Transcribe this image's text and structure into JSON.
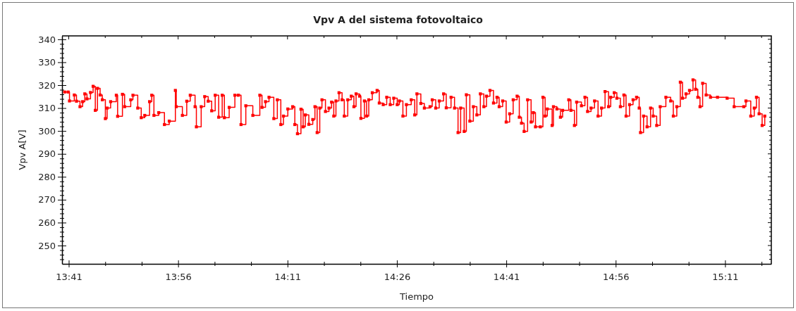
{
  "chart_data": {
    "type": "step",
    "title": "Vpv A del sistema fotovoltaico",
    "xlabel": "Tiempo",
    "ylabel": "Vpv A[V]",
    "marker": "square",
    "line_style": "solid",
    "grid": false,
    "xlim": [
      13.668,
      15.289
    ],
    "ylim": [
      242,
      341.5
    ],
    "xticks": [
      {
        "value": 13.6833,
        "label": "13:41"
      },
      {
        "value": 13.7667,
        "label": null
      },
      {
        "value": 13.85,
        "label": null
      },
      {
        "value": 13.9333,
        "label": "13:56"
      },
      {
        "value": 14.0167,
        "label": null
      },
      {
        "value": 14.1,
        "label": null
      },
      {
        "value": 14.1833,
        "label": "14:11"
      },
      {
        "value": 14.2667,
        "label": null
      },
      {
        "value": 14.35,
        "label": null
      },
      {
        "value": 14.4333,
        "label": "14:26"
      },
      {
        "value": 14.5167,
        "label": null
      },
      {
        "value": 14.6,
        "label": null
      },
      {
        "value": 14.6833,
        "label": "14:41"
      },
      {
        "value": 14.7667,
        "label": null
      },
      {
        "value": 14.85,
        "label": null
      },
      {
        "value": 14.9333,
        "label": "14:56"
      },
      {
        "value": 15.0167,
        "label": null
      },
      {
        "value": 15.1,
        "label": null
      },
      {
        "value": 15.1833,
        "label": "15:11"
      },
      {
        "value": 15.2667,
        "label": null
      }
    ],
    "yticks": [
      {
        "value": 244,
        "label": null
      },
      {
        "value": 246,
        "label": null
      },
      {
        "value": 248,
        "label": null
      },
      250,
      {
        "value": 252,
        "label": null
      },
      {
        "value": 254,
        "label": null
      },
      {
        "value": 256,
        "label": null
      },
      {
        "value": 258,
        "label": null
      },
      260,
      {
        "value": 262,
        "label": null
      },
      {
        "value": 264,
        "label": null
      },
      {
        "value": 266,
        "label": null
      },
      {
        "value": 268,
        "label": null
      },
      270,
      {
        "value": 272,
        "label": null
      },
      {
        "value": 274,
        "label": null
      },
      {
        "value": 276,
        "label": null
      },
      {
        "value": 278,
        "label": null
      },
      280,
      {
        "value": 282,
        "label": null
      },
      {
        "value": 284,
        "label": null
      },
      {
        "value": 286,
        "label": null
      },
      {
        "value": 288,
        "label": null
      },
      290,
      {
        "value": 292,
        "label": null
      },
      {
        "value": 294,
        "label": null
      },
      {
        "value": 296,
        "label": null
      },
      {
        "value": 298,
        "label": null
      },
      300,
      {
        "value": 302,
        "label": null
      },
      {
        "value": 304,
        "label": null
      },
      {
        "value": 306,
        "label": null
      },
      {
        "value": 308,
        "label": null
      },
      310,
      {
        "value": 312,
        "label": null
      },
      {
        "value": 314,
        "label": null
      },
      {
        "value": 316,
        "label": null
      },
      {
        "value": 318,
        "label": null
      },
      320,
      {
        "value": 322,
        "label": null
      },
      {
        "value": 324,
        "label": null
      },
      {
        "value": 326,
        "label": null
      },
      {
        "value": 328,
        "label": null
      },
      330,
      {
        "value": 332,
        "label": null
      },
      {
        "value": 334,
        "label": null
      },
      {
        "value": 336,
        "label": null
      },
      {
        "value": 338,
        "label": null
      },
      340
    ],
    "series": [
      {
        "color": "#ff0000",
        "x": [
          13.674,
          13.682,
          13.685,
          13.696,
          13.701,
          13.709,
          13.715,
          13.72,
          13.725,
          13.733,
          13.739,
          13.744,
          13.749,
          13.755,
          13.76,
          13.767,
          13.771,
          13.779,
          13.792,
          13.795,
          13.806,
          13.811,
          13.825,
          13.83,
          13.841,
          13.849,
          13.857,
          13.868,
          13.873,
          13.878,
          13.889,
          13.902,
          13.913,
          13.927,
          13.929,
          13.943,
          13.953,
          13.961,
          13.972,
          13.975,
          13.986,
          13.994,
          14.002,
          14.01,
          14.018,
          14.026,
          14.034,
          14.039,
          14.05,
          14.063,
          14.071,
          14.077,
          14.088,
          14.104,
          14.12,
          14.125,
          14.133,
          14.141,
          14.152,
          14.16,
          14.168,
          14.174,
          14.184,
          14.195,
          14.2,
          14.206,
          14.214,
          14.219,
          14.224,
          14.232,
          14.241,
          14.246,
          14.251,
          14.257,
          14.262,
          14.27,
          14.278,
          14.284,
          14.289,
          14.294,
          14.301,
          14.308,
          14.313,
          14.321,
          14.329,
          14.335,
          14.34,
          14.348,
          14.351,
          14.359,
          14.364,
          14.369,
          14.377,
          14.388,
          14.393,
          14.402,
          14.41,
          14.418,
          14.426,
          14.434,
          14.439,
          14.447,
          14.455,
          14.466,
          14.474,
          14.479,
          14.488,
          14.496,
          14.509,
          14.514,
          14.522,
          14.53,
          14.54,
          14.546,
          14.557,
          14.565,
          14.573,
          14.579,
          14.587,
          14.592,
          14.6,
          14.608,
          14.616,
          14.624,
          14.632,
          14.638,
          14.646,
          14.654,
          14.662,
          14.667,
          14.675,
          14.683,
          14.691,
          14.699,
          14.708,
          14.713,
          14.718,
          14.724,
          14.732,
          14.74,
          14.745,
          14.75,
          14.761,
          14.767,
          14.772,
          14.777,
          14.788,
          14.791,
          14.799,
          14.807,
          14.812,
          14.826,
          14.831,
          14.839,
          14.844,
          14.855,
          14.863,
          14.869,
          14.877,
          14.885,
          14.893,
          14.901,
          14.909,
          14.917,
          14.922,
          14.93,
          14.936,
          14.944,
          14.952,
          14.957,
          14.965,
          14.973,
          14.981,
          14.987,
          14.99,
          14.997,
          15.005,
          15.013,
          15.019,
          15.027,
          15.035,
          15.048,
          15.059,
          15.065,
          15.073,
          15.081,
          15.086,
          15.094,
          15.102,
          15.11,
          15.116,
          15.121,
          15.126,
          15.132,
          15.14,
          15.15,
          15.166,
          15.188,
          15.204,
          15.226,
          15.231,
          15.242,
          15.25,
          15.255,
          15.261,
          15.268,
          15.274
        ],
        "values": [
          317,
          317,
          313.1,
          315.7,
          313,
          310.6,
          312.8,
          316.2,
          314,
          316.8,
          319.5,
          309,
          318.6,
          315.7,
          313.6,
          305.4,
          310,
          312.8,
          315.6,
          306.4,
          316,
          310.6,
          313.6,
          315.6,
          310,
          305.8,
          306.8,
          312.8,
          315.6,
          306.8,
          308,
          302.8,
          304.3,
          317.7,
          310.6,
          306.8,
          313,
          315.6,
          310.6,
          301.8,
          310.6,
          315,
          313,
          308.8,
          315.6,
          306,
          315.6,
          305.8,
          310.3,
          315.6,
          315.6,
          302.8,
          311,
          306.8,
          315.6,
          310.3,
          312.8,
          314.7,
          305.4,
          313.6,
          302.8,
          306.5,
          309.6,
          310.6,
          302.8,
          298.8,
          309.5,
          301.8,
          307,
          302.9,
          305,
          310.6,
          299.3,
          310,
          313.6,
          308.5,
          310,
          312.6,
          306.5,
          313.1,
          316.7,
          313.6,
          306.5,
          313.6,
          315.2,
          310.6,
          316.2,
          315.2,
          305.5,
          313.1,
          306.5,
          313.6,
          316.7,
          317.7,
          312.2,
          311.5,
          314.7,
          311.5,
          314.3,
          311.5,
          313.1,
          306.5,
          311.5,
          313.6,
          307,
          316.2,
          312,
          310,
          310.6,
          313.6,
          310,
          313.1,
          316.2,
          310.1,
          314.7,
          310,
          299.3,
          310,
          299.8,
          315.8,
          304.3,
          310.6,
          307,
          316.2,
          310.6,
          315.2,
          317.7,
          312.2,
          314.7,
          310.6,
          313.1,
          303.9,
          307.5,
          313.6,
          315.2,
          306,
          303.4,
          299.8,
          313.6,
          303.9,
          308,
          301.8,
          301.8,
          314.7,
          306.5,
          309.6,
          302.4,
          310.6,
          309.6,
          306,
          309,
          313.6,
          309,
          302.4,
          312.6,
          311,
          314.7,
          308.5,
          310,
          313.1,
          306.5,
          310,
          317.2,
          310.6,
          314.7,
          316.7,
          314.3,
          310.6,
          315.7,
          306.5,
          311.5,
          313.6,
          314.7,
          310,
          299.3,
          306.5,
          301.8,
          310,
          306.5,
          302.4,
          310.6,
          314.7,
          313.1,
          306.5,
          310.6,
          321.3,
          314.3,
          316.2,
          317.7,
          322.3,
          318.2,
          314.7,
          310.6,
          320.8,
          315.7,
          314.7,
          314.7,
          314.3,
          310.6,
          310.6,
          313.1,
          306.5,
          310,
          314.7,
          307.5,
          302.4,
          306.5
        ]
      }
    ]
  }
}
